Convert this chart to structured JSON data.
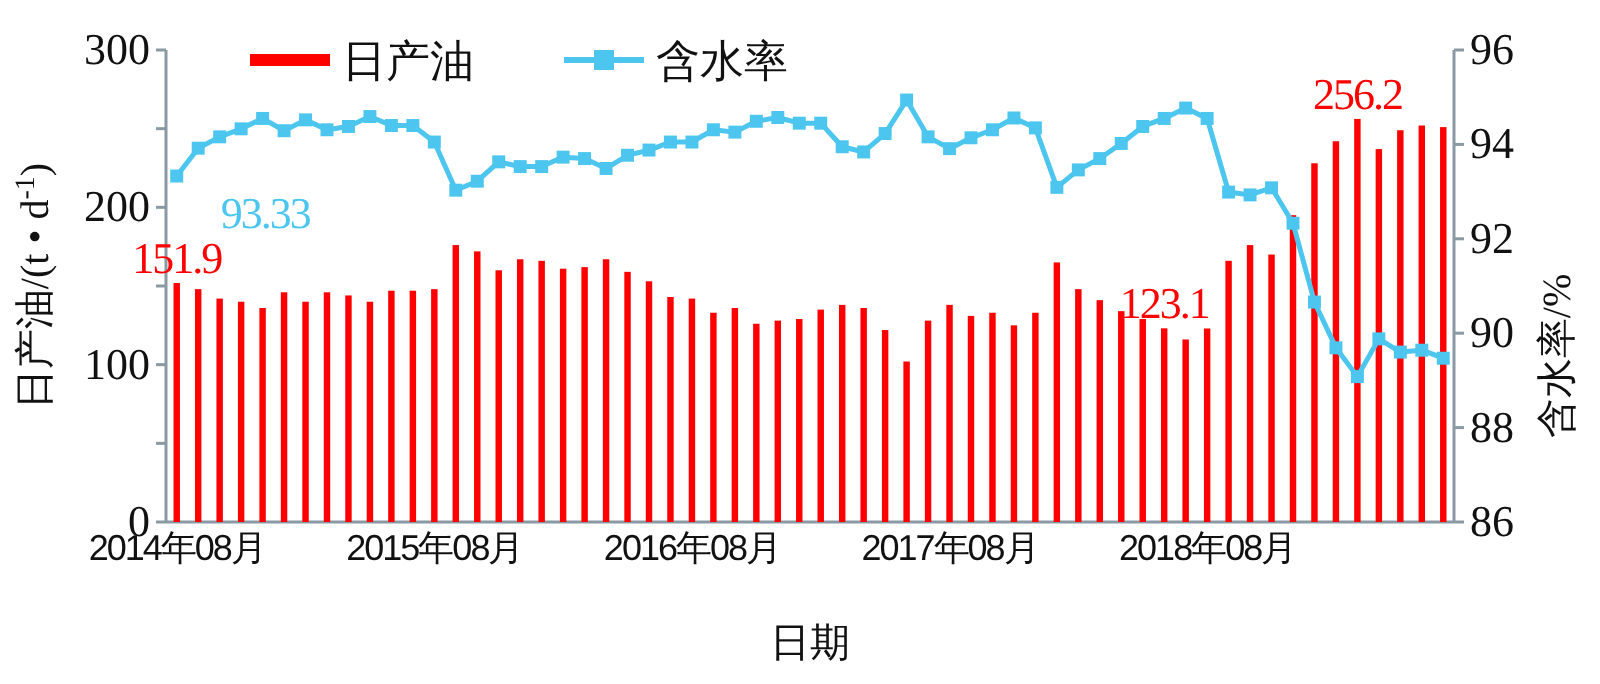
{
  "chart_data": {
    "type": "bar",
    "xlabel": "日期",
    "ylabel": "日产油/(t • d$^{-1}$)",
    "y2label": "含水率/%",
    "categories": [
      "2014年08月",
      null,
      null,
      null,
      null,
      null,
      null,
      null,
      null,
      null,
      null,
      null,
      "2015年08月",
      null,
      null,
      null,
      null,
      null,
      null,
      null,
      null,
      null,
      null,
      null,
      "2016年08月",
      null,
      null,
      null,
      null,
      null,
      null,
      null,
      null,
      null,
      null,
      null,
      "2017年08月",
      null,
      null,
      null,
      null,
      null,
      null,
      null,
      null,
      null,
      null,
      null,
      "2018年08月",
      null,
      null,
      null,
      null,
      null,
      null,
      null,
      null,
      null,
      null,
      null
    ],
    "ylim": [
      0,
      300
    ],
    "yticks": [
      0,
      {
        "value": 50,
        "label": null
      },
      100,
      {
        "value": 150,
        "label": null
      },
      200,
      {
        "value": 250,
        "label": null
      },
      300
    ],
    "y2lim": [
      86,
      96
    ],
    "y2ticks": [
      86,
      88,
      90,
      92,
      94,
      96
    ],
    "legend": "top",
    "grid": false,
    "series": [
      {
        "name": "日产油",
        "color": "#ff0000",
        "values": [
          151.9,
          148,
          142,
          140,
          136,
          146,
          140,
          146,
          144,
          140,
          147,
          147,
          148,
          176,
          172,
          160,
          167,
          166,
          161,
          162,
          167,
          159,
          153,
          143,
          142,
          133,
          136,
          126,
          128,
          129,
          135,
          138,
          136,
          122,
          102,
          128,
          138,
          131,
          133,
          125,
          133,
          165,
          148,
          141,
          134,
          129,
          123.1,
          116,
          123,
          166,
          176,
          170,
          195,
          228,
          242,
          256.2,
          237,
          249,
          252,
          251
        ],
        "value_labels": [
          "151.9",
          null,
          null,
          null,
          null,
          null,
          null,
          null,
          null,
          null,
          null,
          null,
          null,
          null,
          null,
          null,
          null,
          null,
          null,
          null,
          null,
          null,
          null,
          null,
          null,
          null,
          null,
          null,
          null,
          null,
          null,
          null,
          null,
          null,
          null,
          null,
          null,
          null,
          null,
          null,
          null,
          null,
          null,
          null,
          null,
          null,
          "123.1",
          null,
          null,
          null,
          null,
          null,
          null,
          null,
          null,
          "256.2",
          null,
          null,
          null,
          null
        ]
      },
      {
        "name": "含水率",
        "type": "line",
        "axis": "y2",
        "color": "#4cc6ee",
        "marker": "square",
        "values": [
          93.33,
          93.92,
          94.16,
          94.33,
          94.55,
          94.29,
          94.52,
          94.31,
          94.38,
          94.59,
          94.4,
          94.4,
          94.05,
          93.03,
          93.22,
          93.63,
          93.53,
          93.53,
          93.73,
          93.7,
          93.49,
          93.77,
          93.88,
          94.05,
          94.05,
          94.31,
          94.26,
          94.49,
          94.57,
          94.45,
          94.45,
          93.95,
          93.84,
          94.23,
          94.94,
          94.16,
          93.91,
          94.14,
          94.31,
          94.56,
          94.35,
          93.09,
          93.46,
          93.7,
          94.02,
          94.38,
          94.55,
          94.77,
          94.55,
          92.99,
          92.93,
          93.08,
          92.33,
          90.66,
          89.69,
          89.08,
          89.88,
          89.6,
          89.64,
          89.47
        ],
        "value_labels": [
          "93.33",
          null,
          null,
          null,
          null,
          null,
          null,
          null,
          null,
          null,
          null,
          null,
          null,
          null,
          null,
          null,
          null,
          null,
          null,
          null,
          null,
          null,
          null,
          null,
          null,
          null,
          null,
          null,
          null,
          null,
          null,
          null,
          null,
          null,
          null,
          null,
          null,
          null,
          null,
          null,
          null,
          null,
          null,
          null,
          null,
          null,
          null,
          null,
          null,
          null,
          null,
          null,
          null,
          null,
          null,
          null,
          null,
          null,
          null,
          null
        ]
      }
    ]
  }
}
